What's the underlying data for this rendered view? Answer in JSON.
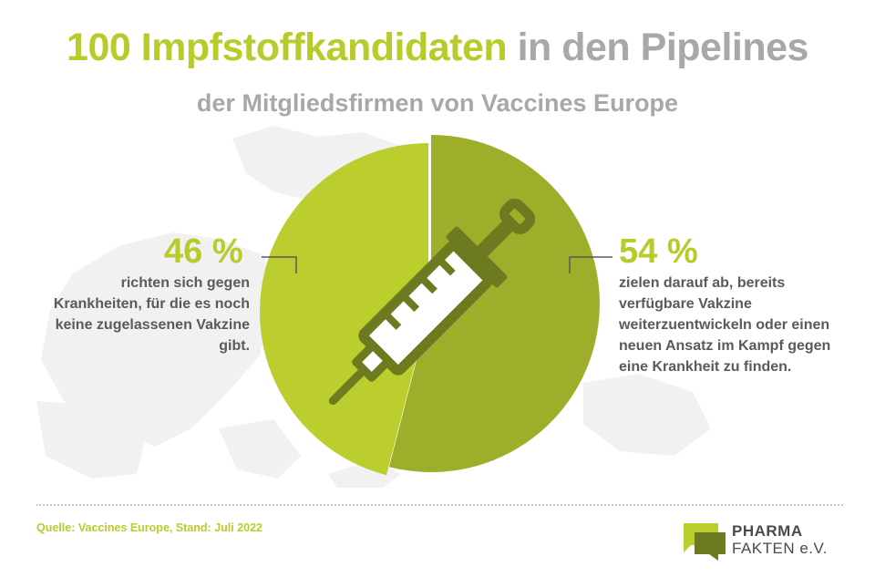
{
  "title": {
    "part_accent": "100 Impfstoffkandidaten",
    "part_gray": "in den Pipelines"
  },
  "subtitle": "der Mitgliedsfirmen von Vaccines Europe",
  "chart_data": {
    "type": "pie",
    "unit": "%",
    "slices": [
      {
        "label": "46 %",
        "value": 46,
        "color": "#bcce2d",
        "description": "richten sich gegen Krankheiten, für die es noch keine zugelassenen Vakzine gibt."
      },
      {
        "label": "54 %",
        "value": 54,
        "color": "#9ead2a",
        "description": "zielen darauf ab, bereits verfügbare Vakzine weiterzuentwickeln oder einen neuen Ansatz im Kampf gegen eine Krankheit zu finden."
      }
    ]
  },
  "source": "Quelle: Vaccines Europe, Stand: Juli 2022",
  "logo": {
    "line1": "PHARMA",
    "line2": "FAKTEN e.V."
  },
  "colors": {
    "accent": "#b9cb2a",
    "gray_text": "#a7a8aa",
    "slice_dark": "#9ead2a",
    "slice_light": "#bcce2d",
    "syringe": "#6e7a1f",
    "map": "#f1f1f1"
  },
  "icons": [
    "syringe-icon",
    "europe-map-background",
    "pharma-fakten-logo-mark"
  ]
}
